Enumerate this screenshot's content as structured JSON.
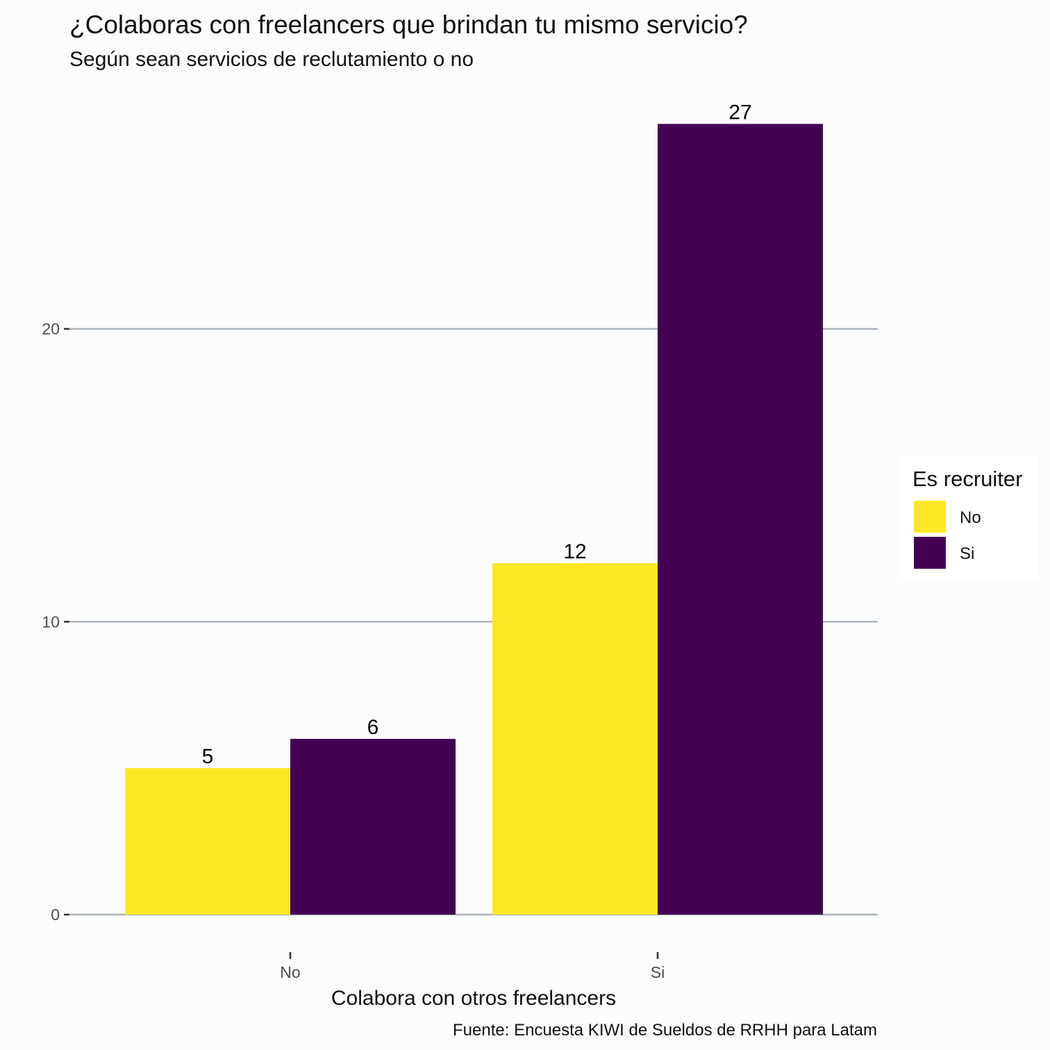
{
  "chart_data": {
    "type": "bar",
    "title": "¿Colaboras con freelancers que brindan tu mismo servicio?",
    "subtitle": "Según sean servicios de reclutamiento o no",
    "xlabel": "Colabora con otros freelancers",
    "ylabel": "",
    "caption": "Fuente: Encuesta KIWI de Sueldos de RRHH para Latam",
    "categories": [
      "No",
      "Si"
    ],
    "series": [
      {
        "name": "No",
        "color": "#fde725",
        "values": [
          5,
          12
        ]
      },
      {
        "name": "Si",
        "color": "#440154",
        "values": [
          6,
          27
        ]
      }
    ],
    "ylim": [
      0,
      28.4
    ],
    "yticks": [
      0,
      10,
      20
    ],
    "grid": true,
    "legend": {
      "title": "Es recruiter",
      "position": "right"
    }
  }
}
